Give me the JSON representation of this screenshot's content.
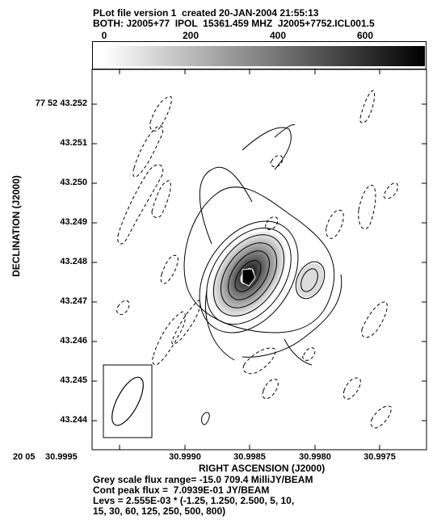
{
  "header": {
    "line1": "PLot file version 1  created 20-JAN-2004 21:55:13",
    "line2": "BOTH: J2005+77  IPOL  15361.459 MHZ  J2005+7752.ICL001.5"
  },
  "wedge": {
    "ticks": [
      "0",
      "200",
      "400",
      "600"
    ]
  },
  "axes": {
    "xlabel": "RIGHT ASCENSION (J2000)",
    "ylabel": "DECLINATION (J2000)",
    "x_prefix": "20 05",
    "xticks": [
      "30.9995",
      "30.9990",
      "30.9985",
      "30.9980",
      "30.9975"
    ],
    "yticks": [
      "77 52 43.252",
      "43.251",
      "43.250",
      "43.249",
      "43.248",
      "43.247",
      "43.246",
      "43.245",
      "43.244"
    ]
  },
  "footer": {
    "line1": "Grey scale flux range= -15.0 709.4 MilliJY/BEAM",
    "line2": "Cont peak flux =  7.0939E-01 JY/BEAM",
    "line3": "Levs = 2.555E-03 * (-1.25, 1.250, 2.500, 5, 10,",
    "line4": "15, 30, 60, 125, 250, 500, 800)"
  }
}
